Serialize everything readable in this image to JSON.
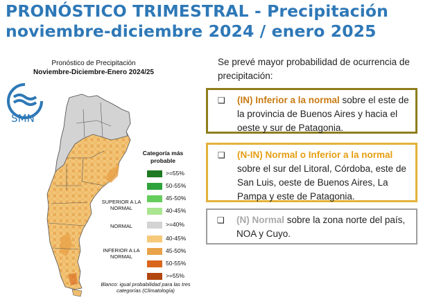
{
  "header": {
    "title_line1": "PRONÓSTICO TRIMESTRAL - Precipitación",
    "title_line2": "noviembre-diciembre 2024 / enero 2025"
  },
  "map": {
    "title_line1": "Pronóstico de Precipitación",
    "title_line2": "Noviembre-Diciembre-Enero 2024/25",
    "logo_text": "SMN",
    "legend": {
      "title": "Categoría más probable",
      "items": [
        {
          "label": ">=55%",
          "color": "#1f7a22"
        },
        {
          "label": "50-55%",
          "color": "#2fa33b"
        },
        {
          "label": "45-50%",
          "color": "#66cc5c"
        },
        {
          "label": "40-45%",
          "color": "#a9e68f"
        },
        {
          "label": ">=40%",
          "color": "#d3d3d3"
        },
        {
          "label": "40-45%",
          "color": "#f6c97a"
        },
        {
          "label": "45-50%",
          "color": "#e9a34a"
        },
        {
          "label": "50-55%",
          "color": "#d8661d"
        },
        {
          "label": ">=55%",
          "color": "#b1470f"
        }
      ],
      "group_superior": "SUPERIOR A LA NORMAL",
      "group_normal": "NORMAL",
      "group_inferior": "INFERIOR A LA NORMAL"
    },
    "note": "Blanco: igual probabilidad para las tres categorías (Climatología)"
  },
  "summary": {
    "intro": "Se prevé mayor probabilidad de ocurrencia de precipitación:",
    "items": [
      {
        "bullet": "❑",
        "highlight": "(IN) Inferior a la normal",
        "text": " sobre el este de la provincia de Buenos Aires y hacia el oeste y sur de Patagonia."
      },
      {
        "bullet": "❑",
        "highlight": "(N-IN) Normal o Inferior a la normal",
        "text": " sobre el sur del Litoral, Córdoba, este de San Luis, oeste de Buenos Aires, La Pampa y este de Patagonia."
      },
      {
        "bullet": "❑",
        "highlight": "(N) Normal",
        "text": " sobre la zona norte del país, NOA y Cuyo."
      }
    ]
  }
}
